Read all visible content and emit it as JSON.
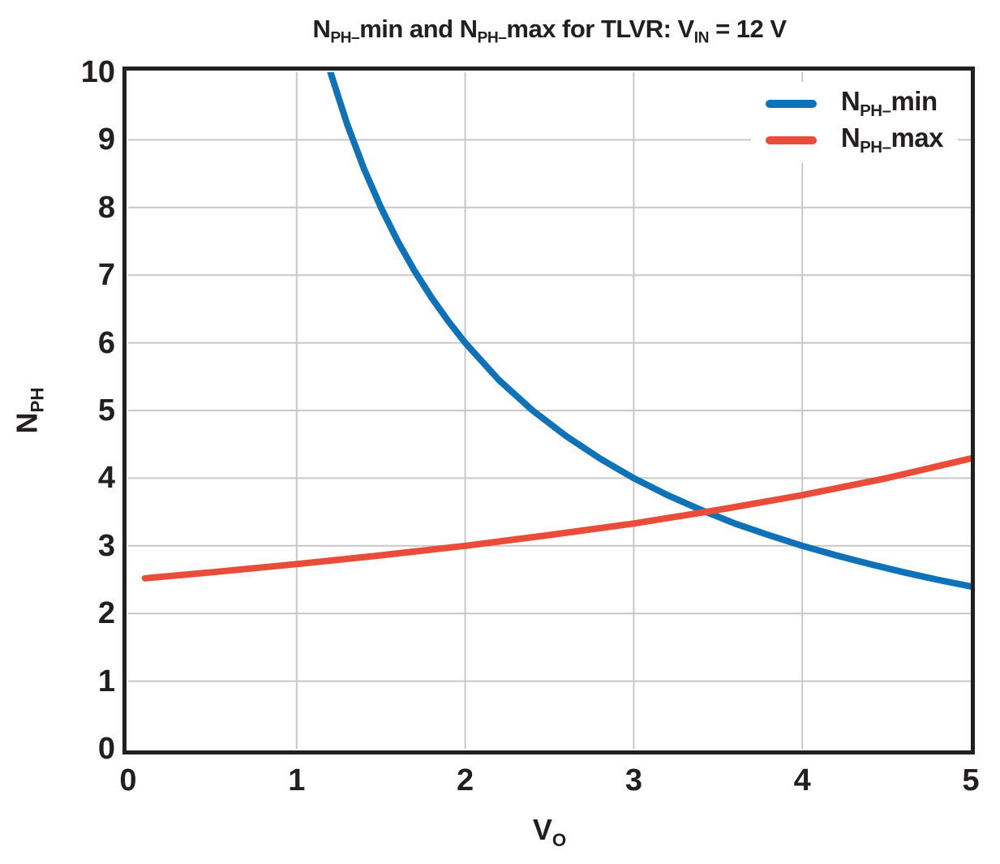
{
  "display": {
    "title_segments": [
      {
        "t": "N"
      },
      {
        "t": "PH–",
        "sub": true
      },
      {
        "t": "min and N"
      },
      {
        "t": "PH–",
        "sub": true
      },
      {
        "t": "max for TLVR: V"
      },
      {
        "t": "IN",
        "sub": true
      },
      {
        "t": " = 12 V"
      }
    ],
    "y_label_segments": [
      {
        "t": "N"
      },
      {
        "t": "PH",
        "sub": true
      }
    ],
    "x_label_segments": [
      {
        "t": "V"
      },
      {
        "t": "O",
        "sub": true
      }
    ],
    "legend": [
      {
        "segments": [
          {
            "t": "N"
          },
          {
            "t": "PH–",
            "sub": true
          },
          {
            "t": "min"
          }
        ]
      },
      {
        "segments": [
          {
            "t": "N"
          },
          {
            "t": "PH–",
            "sub": true
          },
          {
            "t": "max"
          }
        ]
      }
    ]
  },
  "colors": {
    "text": "#231f20",
    "spine": "#231f20",
    "grid": "#c8c8c8",
    "background": "#ffffff",
    "blue": "#0e72b9",
    "red": "#e94d39"
  },
  "chart_data": {
    "type": "line",
    "title": "N_PH_min and N_PH_max for TLVR: V_IN = 12 V",
    "xlabel": "V_O",
    "ylabel": "N_PH",
    "xlim": [
      0,
      5
    ],
    "ylim": [
      0,
      10
    ],
    "x_ticks": [
      0,
      1,
      2,
      3,
      4,
      5
    ],
    "y_ticks": [
      0,
      1,
      2,
      3,
      4,
      5,
      6,
      7,
      8,
      9,
      10
    ],
    "grid": true,
    "legend_position": "upper right",
    "line_width": 8,
    "intersection": {
      "x": 3.43,
      "y": 3.5
    },
    "series": [
      {
        "name": "N_PH_min",
        "color": "#0e72b9",
        "x": [
          1.2,
          1.3,
          1.4,
          1.5,
          1.6,
          1.7,
          1.8,
          1.9,
          2.0,
          2.2,
          2.4,
          2.6,
          2.8,
          3.0,
          3.2,
          3.4,
          3.6,
          3.8,
          4.0,
          4.2,
          4.4,
          4.6,
          4.8,
          5.0
        ],
        "y": [
          10,
          9.23,
          8.57,
          8.0,
          7.5,
          7.06,
          6.67,
          6.32,
          6.0,
          5.45,
          5.0,
          4.62,
          4.29,
          4.0,
          3.75,
          3.53,
          3.33,
          3.16,
          3.0,
          2.86,
          2.73,
          2.61,
          2.5,
          2.4
        ]
      },
      {
        "name": "N_PH_max",
        "color": "#e94d39",
        "x": [
          0.1,
          0.5,
          1.0,
          1.5,
          2.0,
          2.5,
          3.0,
          3.5,
          4.0,
          4.5,
          5.0
        ],
        "y": [
          2.52,
          2.61,
          2.73,
          2.86,
          3.0,
          3.16,
          3.33,
          3.53,
          3.75,
          4.0,
          4.29
        ]
      }
    ]
  }
}
